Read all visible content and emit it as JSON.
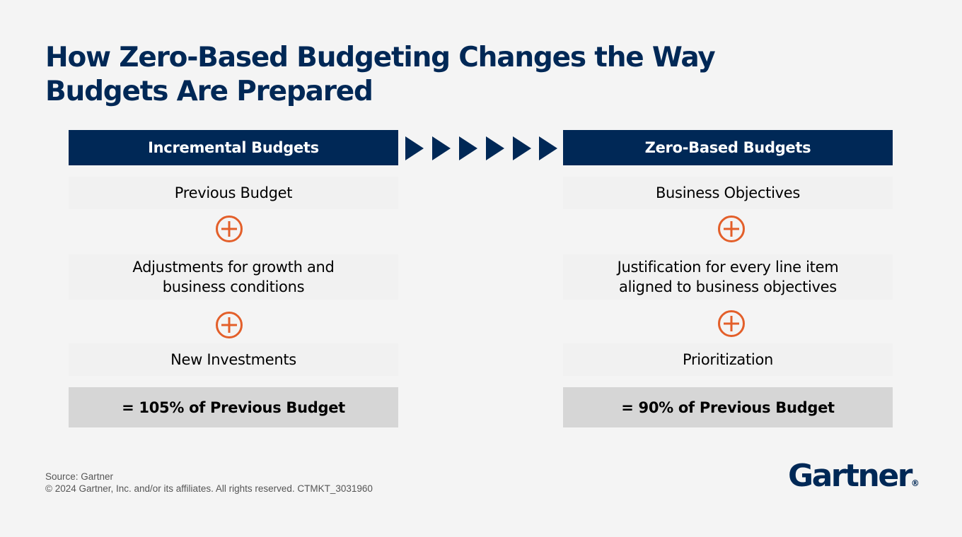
{
  "title": {
    "line1": "How Zero-Based Budgeting Changes the Way",
    "line2": "Budgets Are Prepared"
  },
  "left_column": {
    "header": "Incremental Budgets",
    "items": [
      {
        "lines": [
          "Previous Budget"
        ]
      },
      {
        "lines": [
          "Adjustments for growth and",
          "business conditions"
        ]
      },
      {
        "lines": [
          "New Investments"
        ]
      }
    ],
    "result": "= 105% of Previous Budget"
  },
  "right_column": {
    "header": "Zero-Based Budgets",
    "items": [
      {
        "lines": [
          "Business Objectives"
        ]
      },
      {
        "lines": [
          "Justification for every line item",
          "aligned to business objectives"
        ]
      },
      {
        "lines": [
          "Prioritization"
        ]
      }
    ],
    "result": "= 90% of Previous Budget"
  },
  "connector": {
    "icon": "chevron-arrow-icon",
    "count": 6
  },
  "operator_icon": "plus-circle-icon",
  "footer": {
    "source": "Source: Gartner",
    "copyright": "© 2024 Gartner, Inc. and/or its affiliates. All rights reserved. CTMKT_3031960"
  },
  "logo": {
    "text": "Gartner",
    "mark": "®"
  },
  "colors": {
    "navy": "#002856",
    "orange": "#e35f2a",
    "result_bg": "#d6d6d6",
    "item_bg": "#f1f1f1",
    "page_bg": "#f4f4f4"
  }
}
